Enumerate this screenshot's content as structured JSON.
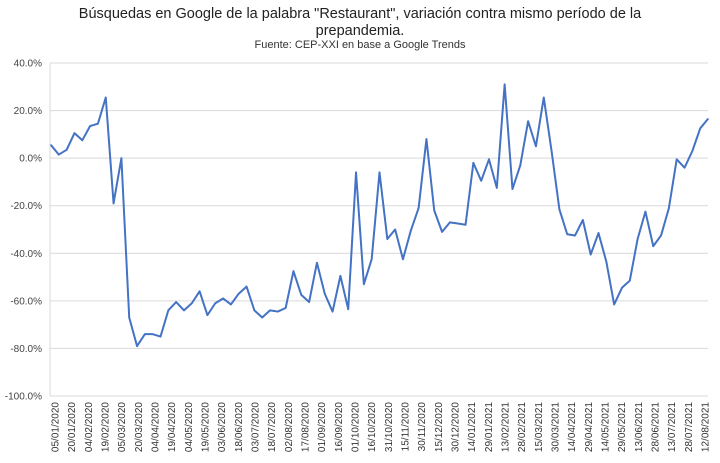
{
  "chart_data": {
    "type": "line",
    "title": "Búsquedas en Google de la palabra \"Restaurant\", variación contra mismo período de la prepandemia.",
    "subtitle": "Fuente: CEP-XXI en base a Google Trends",
    "ylim": [
      -100,
      40
    ],
    "yticks": [
      "40.0%",
      "20.0%",
      "0.0%",
      "-20.0%",
      "-40.0%",
      "-60.0%",
      "-80.0%",
      "-100.0%"
    ],
    "ytick_values": [
      40,
      20,
      0,
      -20,
      -40,
      -60,
      -80,
      -100
    ],
    "xtick_labels": [
      "05/01/2020",
      "20/01/2020",
      "04/02/2020",
      "19/02/2020",
      "05/03/2020",
      "20/03/2020",
      "04/04/2020",
      "19/04/2020",
      "04/05/2020",
      "19/05/2020",
      "03/06/2020",
      "18/06/2020",
      "03/07/2020",
      "18/07/2020",
      "02/08/2020",
      "17/08/2020",
      "01/09/2020",
      "16/09/2020",
      "01/10/2020",
      "16/10/2020",
      "31/10/2020",
      "15/11/2020",
      "30/11/2020",
      "15/12/2020",
      "30/12/2020",
      "14/01/2021",
      "29/01/2021",
      "13/02/2021",
      "28/02/2021",
      "15/03/2021",
      "30/03/2021",
      "14/04/2021",
      "29/04/2021",
      "14/05/2021",
      "29/05/2021",
      "13/06/2021",
      "28/06/2021",
      "13/07/2021",
      "28/07/2021",
      "12/08/2021"
    ],
    "grid": true,
    "line_color": "#4472c4",
    "series": [
      {
        "values": [
          5.5,
          1.5,
          3.5,
          10.5,
          7.5,
          13.5,
          14.5,
          25.5,
          -19,
          0,
          -67,
          -79,
          -74,
          -74,
          -75,
          -64,
          -60.5,
          -64,
          -61,
          -56,
          -66,
          -61,
          -59,
          -61.5,
          -57,
          -54,
          -64,
          -67,
          -64,
          -64.5,
          -63,
          -47.5,
          -57.5,
          -60.5,
          -44,
          -57,
          -64.5,
          -49.5,
          -63.5,
          -6,
          -53,
          -42.5,
          -6,
          -34,
          -30,
          -42.5,
          -30.5,
          -21,
          8,
          -22,
          -31,
          -27,
          -27.5,
          -28,
          -2,
          -9.5,
          -0.5,
          -12.5,
          31,
          -13,
          -3,
          15.5,
          5,
          25.5,
          3,
          -21.5,
          -32,
          -32.5,
          -26,
          -40.5,
          -31.5,
          -43.5,
          -61.5,
          -54.5,
          -51.5,
          -34,
          -22.5,
          -37,
          -32.5,
          -21,
          -0.5,
          -4,
          3,
          12.5,
          16.5
        ]
      }
    ]
  }
}
